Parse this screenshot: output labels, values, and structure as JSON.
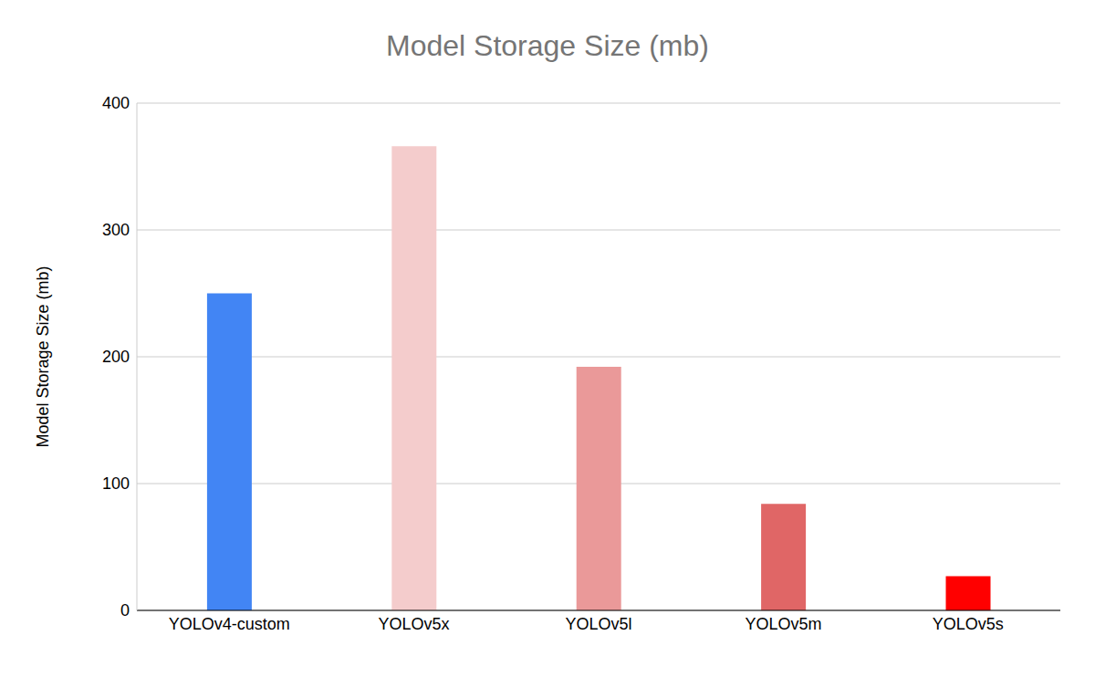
{
  "chart_data": {
    "type": "bar",
    "title": "Model Storage Size (mb)",
    "y_label": "Model Storage Size (mb)",
    "categories": [
      "YOLOv4-custom",
      "YOLOv5x",
      "YOLOv5l",
      "YOLOv5m",
      "YOLOv5s"
    ],
    "values": [
      250,
      366,
      192,
      84,
      27
    ],
    "colors": [
      "#4285f4",
      "#f4cccc",
      "#ea9999",
      "#e06666",
      "#ff0000"
    ],
    "ylim": [
      0,
      400
    ],
    "yticks": [
      0,
      100,
      200,
      300,
      400
    ],
    "grid": true
  }
}
